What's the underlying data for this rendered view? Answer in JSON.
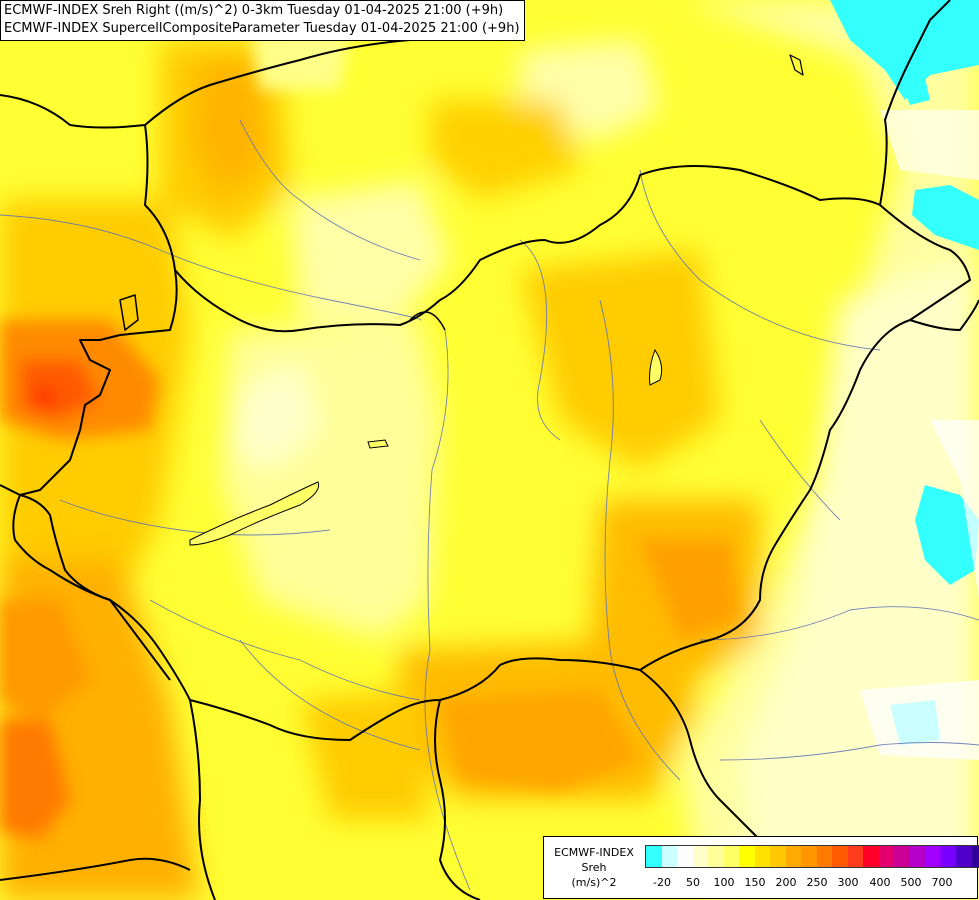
{
  "title": {
    "line1": "ECMWF-INDEX Sreh Right ((m/s)^2) 0-3km Tuesday 01-04-2025 21:00 (+9h)",
    "line2": "ECMWF-INDEX SupercellCompositeParameter Tuesday 01-04-2025 21:00 (+9h)"
  },
  "legend": {
    "source": "ECMWF-INDEX",
    "variable": "Sreh",
    "unit": "(m/s)^2",
    "colors": [
      "#33ffff",
      "#ccffff",
      "#ffffff",
      "#ffffcc",
      "#ffff99",
      "#ffff66",
      "#ffff00",
      "#ffe100",
      "#ffc800",
      "#ffaa00",
      "#ff9600",
      "#ff7a00",
      "#ff5a00",
      "#ff3c1e",
      "#ff0028",
      "#e1006e",
      "#c80096",
      "#b400c8",
      "#a000ff",
      "#7800ff",
      "#5000c8",
      "#32009b",
      "#1e0078"
    ],
    "tick_labels": [
      "-20",
      "50",
      "100",
      "150",
      "200",
      "250",
      "300",
      "400",
      "500",
      "700"
    ]
  }
}
